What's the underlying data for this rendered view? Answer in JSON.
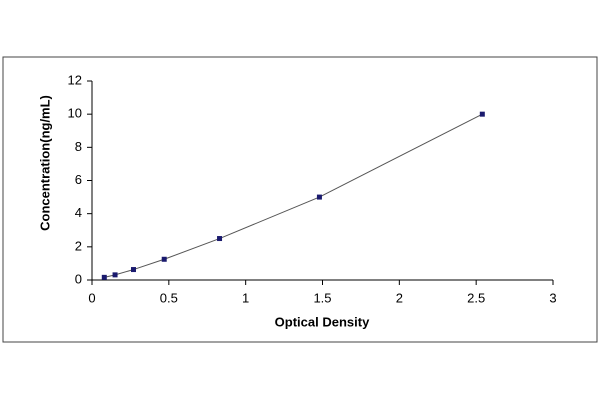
{
  "chart_data": {
    "type": "scatter",
    "x_label": "Optical Density",
    "y_label": "Concentration(ng/mL)",
    "x": [
      0.08,
      0.15,
      0.27,
      0.47,
      0.83,
      1.48,
      2.54
    ],
    "series": [
      {
        "color": "#1a1a6e",
        "values": [
          0.16,
          0.31,
          0.63,
          1.25,
          2.5,
          5,
          10
        ]
      }
    ],
    "fit_line": true,
    "line_color": "#555555",
    "xlim": [
      0,
      3
    ],
    "xticks": [
      0,
      0.5,
      1,
      1.5,
      2,
      2.5,
      3
    ],
    "ylim": [
      0,
      12
    ],
    "yticks": [
      0,
      2,
      4,
      6,
      8,
      10,
      12
    ],
    "grid": false
  }
}
